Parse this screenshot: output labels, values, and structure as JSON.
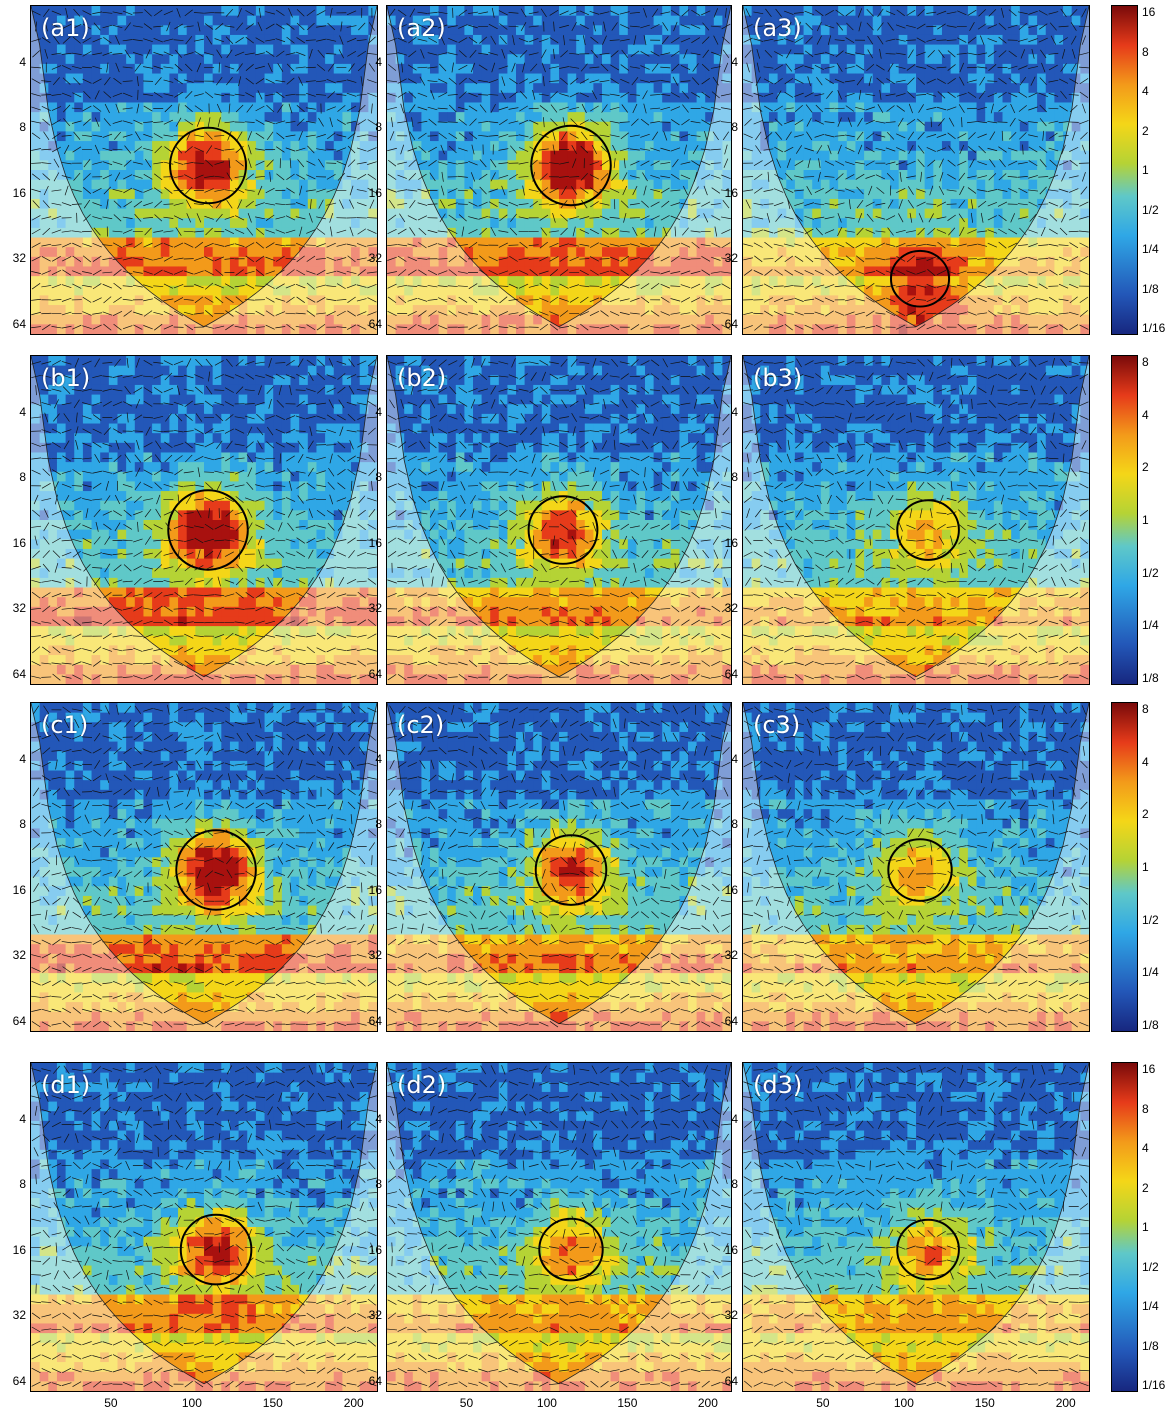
{
  "panel_labels": [
    [
      "(a1)",
      "(a2)",
      "(a3)"
    ],
    [
      "(b1)",
      "(b2)",
      "(b3)"
    ],
    [
      "(c1)",
      "(c2)",
      "(c3)"
    ],
    [
      "(d1)",
      "(d2)",
      "(d3)"
    ]
  ],
  "y_ticks": [
    "4",
    "8",
    "16",
    "32",
    "64"
  ],
  "x_ticks": [
    "50",
    "100",
    "150",
    "200"
  ],
  "colorbars": [
    [
      "16",
      "8",
      "4",
      "2",
      "1",
      "1/2",
      "1/4",
      "1/8",
      "1/16"
    ],
    [
      "8",
      "4",
      "2",
      "1",
      "1/2",
      "1/4",
      "1/8"
    ],
    [
      "8",
      "4",
      "2",
      "1",
      "1/2",
      "1/4",
      "1/8"
    ],
    [
      "16",
      "8",
      "4",
      "2",
      "1",
      "1/2",
      "1/4",
      "1/8",
      "1/16"
    ]
  ],
  "colors": {
    "low": "#17277f",
    "mid_low": "#2fa7e6",
    "mid": "#b5d335",
    "mid_high": "#f4d618",
    "high": "#e63b1a",
    "max": "#7a0a0a",
    "coi_shade": "#c8c8d2"
  },
  "chart_data": {
    "type": "heatmap",
    "title": "",
    "xlabel": "",
    "ylabel": "",
    "xlim": [
      0,
      215
    ],
    "ylim": [
      2,
      80
    ],
    "y_scale": "log2",
    "y_reversed": true,
    "x_ticks": [
      50,
      100,
      150,
      200
    ],
    "y_ticks": [
      4,
      8,
      16,
      32,
      64
    ],
    "panels": [
      {
        "label": "(a1)",
        "row": 0,
        "col": 0,
        "hotspot_x": 110,
        "hotspot_period": 12,
        "intensity": 0.9
      },
      {
        "label": "(a2)",
        "row": 0,
        "col": 1,
        "hotspot_x": 115,
        "hotspot_period": 12,
        "intensity": 1.0
      },
      {
        "label": "(a3)",
        "row": 0,
        "col": 2,
        "hotspot_x": 110,
        "hotspot_period": 40,
        "intensity": 0.4
      },
      {
        "label": "(b1)",
        "row": 1,
        "col": 0,
        "hotspot_x": 110,
        "hotspot_period": 14,
        "intensity": 1.0
      },
      {
        "label": "(b2)",
        "row": 1,
        "col": 1,
        "hotspot_x": 110,
        "hotspot_period": 14,
        "intensity": 0.7
      },
      {
        "label": "(b3)",
        "row": 1,
        "col": 2,
        "hotspot_x": 115,
        "hotspot_period": 14,
        "intensity": 0.5
      },
      {
        "label": "(c1)",
        "row": 2,
        "col": 0,
        "hotspot_x": 115,
        "hotspot_period": 13,
        "intensity": 1.0
      },
      {
        "label": "(c2)",
        "row": 2,
        "col": 1,
        "hotspot_x": 115,
        "hotspot_period": 13,
        "intensity": 0.75
      },
      {
        "label": "(c3)",
        "row": 2,
        "col": 2,
        "hotspot_x": 110,
        "hotspot_period": 13,
        "intensity": 0.55
      },
      {
        "label": "(d1)",
        "row": 3,
        "col": 0,
        "hotspot_x": 115,
        "hotspot_period": 16,
        "intensity": 0.75
      },
      {
        "label": "(d2)",
        "row": 3,
        "col": 1,
        "hotspot_x": 115,
        "hotspot_period": 16,
        "intensity": 0.55
      },
      {
        "label": "(d3)",
        "row": 3,
        "col": 2,
        "hotspot_x": 115,
        "hotspot_period": 16,
        "intensity": 0.5
      }
    ]
  }
}
